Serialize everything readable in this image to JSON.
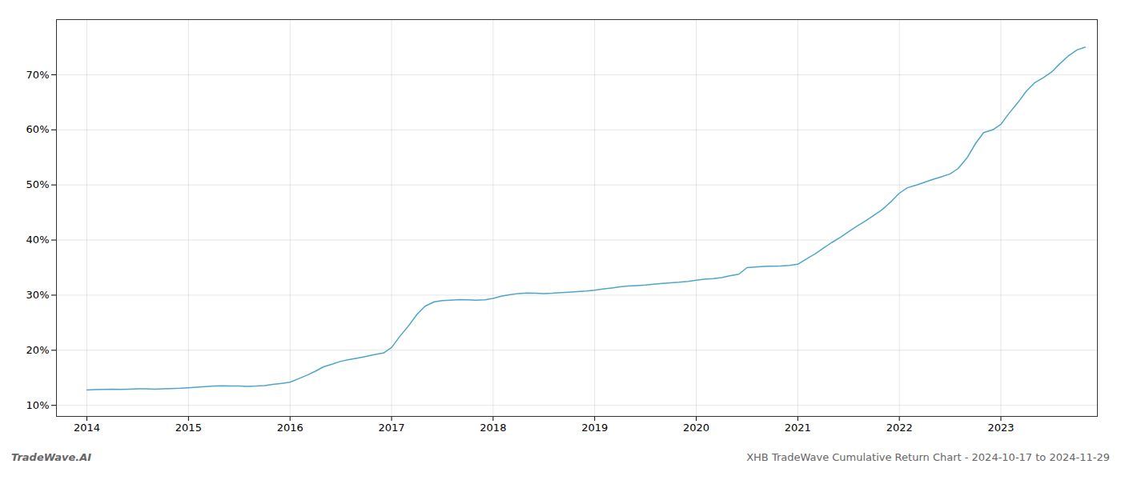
{
  "chart_data": {
    "type": "line",
    "title": "XHB TradeWave Cumulative Return Chart - 2024-10-17 to 2024-11-29",
    "annotations": [
      "TradeWave.AI"
    ],
    "color": "#4da6c8",
    "x": [
      2014.0,
      2014.08,
      2014.17,
      2014.25,
      2014.33,
      2014.42,
      2014.5,
      2014.58,
      2014.67,
      2014.75,
      2014.83,
      2014.92,
      2015.0,
      2015.08,
      2015.17,
      2015.25,
      2015.33,
      2015.42,
      2015.5,
      2015.58,
      2015.67,
      2015.75,
      2015.83,
      2015.92,
      2016.0,
      2016.08,
      2016.17,
      2016.25,
      2016.33,
      2016.42,
      2016.5,
      2016.58,
      2016.67,
      2016.75,
      2016.83,
      2016.92,
      2017.0,
      2017.08,
      2017.17,
      2017.25,
      2017.33,
      2017.42,
      2017.5,
      2017.58,
      2017.67,
      2017.75,
      2017.83,
      2017.92,
      2018.0,
      2018.08,
      2018.17,
      2018.25,
      2018.33,
      2018.42,
      2018.5,
      2018.58,
      2018.67,
      2018.75,
      2018.83,
      2018.92,
      2019.0,
      2019.08,
      2019.17,
      2019.25,
      2019.33,
      2019.42,
      2019.5,
      2019.58,
      2019.67,
      2019.75,
      2019.83,
      2019.92,
      2020.0,
      2020.08,
      2020.17,
      2020.25,
      2020.33,
      2020.42,
      2020.5,
      2020.58,
      2020.67,
      2020.75,
      2020.83,
      2020.92,
      2021.0,
      2021.08,
      2021.17,
      2021.25,
      2021.33,
      2021.42,
      2021.5,
      2021.58,
      2021.67,
      2021.75,
      2021.83,
      2021.92,
      2022.0,
      2022.08,
      2022.17,
      2022.25,
      2022.33,
      2022.42,
      2022.5,
      2022.58,
      2022.67,
      2022.75,
      2022.83,
      2022.92,
      2023.0,
      2023.08,
      2023.17,
      2023.25,
      2023.33,
      2023.42,
      2023.5,
      2023.58,
      2023.67,
      2023.75,
      2023.83
    ],
    "values": [
      12.8,
      12.85,
      12.9,
      12.95,
      12.9,
      12.95,
      13.0,
      13.0,
      12.95,
      13.0,
      13.05,
      13.1,
      13.2,
      13.3,
      13.4,
      13.5,
      13.55,
      13.5,
      13.5,
      13.45,
      13.5,
      13.6,
      13.8,
      14.0,
      14.2,
      14.8,
      15.5,
      16.2,
      17.0,
      17.5,
      18.0,
      18.3,
      18.6,
      18.9,
      19.2,
      19.5,
      20.5,
      22.5,
      24.5,
      26.5,
      28.0,
      28.8,
      29.0,
      29.1,
      29.2,
      29.15,
      29.1,
      29.15,
      29.4,
      29.8,
      30.1,
      30.3,
      30.4,
      30.35,
      30.3,
      30.35,
      30.45,
      30.55,
      30.65,
      30.75,
      30.9,
      31.1,
      31.3,
      31.5,
      31.65,
      31.75,
      31.85,
      32.0,
      32.15,
      32.25,
      32.35,
      32.5,
      32.7,
      32.9,
      33.0,
      33.2,
      33.5,
      33.8,
      35.0,
      35.1,
      35.2,
      35.25,
      35.3,
      35.4,
      35.6,
      36.5,
      37.5,
      38.5,
      39.5,
      40.5,
      41.5,
      42.5,
      43.5,
      44.5,
      45.5,
      47.0,
      48.5,
      49.5,
      50.0,
      50.5,
      51.0,
      51.5,
      52.0,
      53.0,
      55.0,
      57.5,
      59.5,
      60.0,
      61.0,
      63.0,
      65.0,
      67.0,
      68.5,
      69.5,
      70.5,
      72.0,
      73.5,
      74.5,
      75.0
    ],
    "xlim": [
      2013.7,
      2023.95
    ],
    "xticks": [
      2014,
      2015,
      2016,
      2017,
      2018,
      2019,
      2020,
      2021,
      2022,
      2023
    ],
    "ylim": [
      8,
      80
    ],
    "yticks": [
      {
        "value": 10,
        "label": "10%"
      },
      {
        "value": 20,
        "label": "20%"
      },
      {
        "value": 30,
        "label": "30%"
      },
      {
        "value": 40,
        "label": "40%"
      },
      {
        "value": 50,
        "label": "50%"
      },
      {
        "value": 60,
        "label": "60%"
      },
      {
        "value": 70,
        "label": "70%"
      }
    ],
    "grid": true
  }
}
